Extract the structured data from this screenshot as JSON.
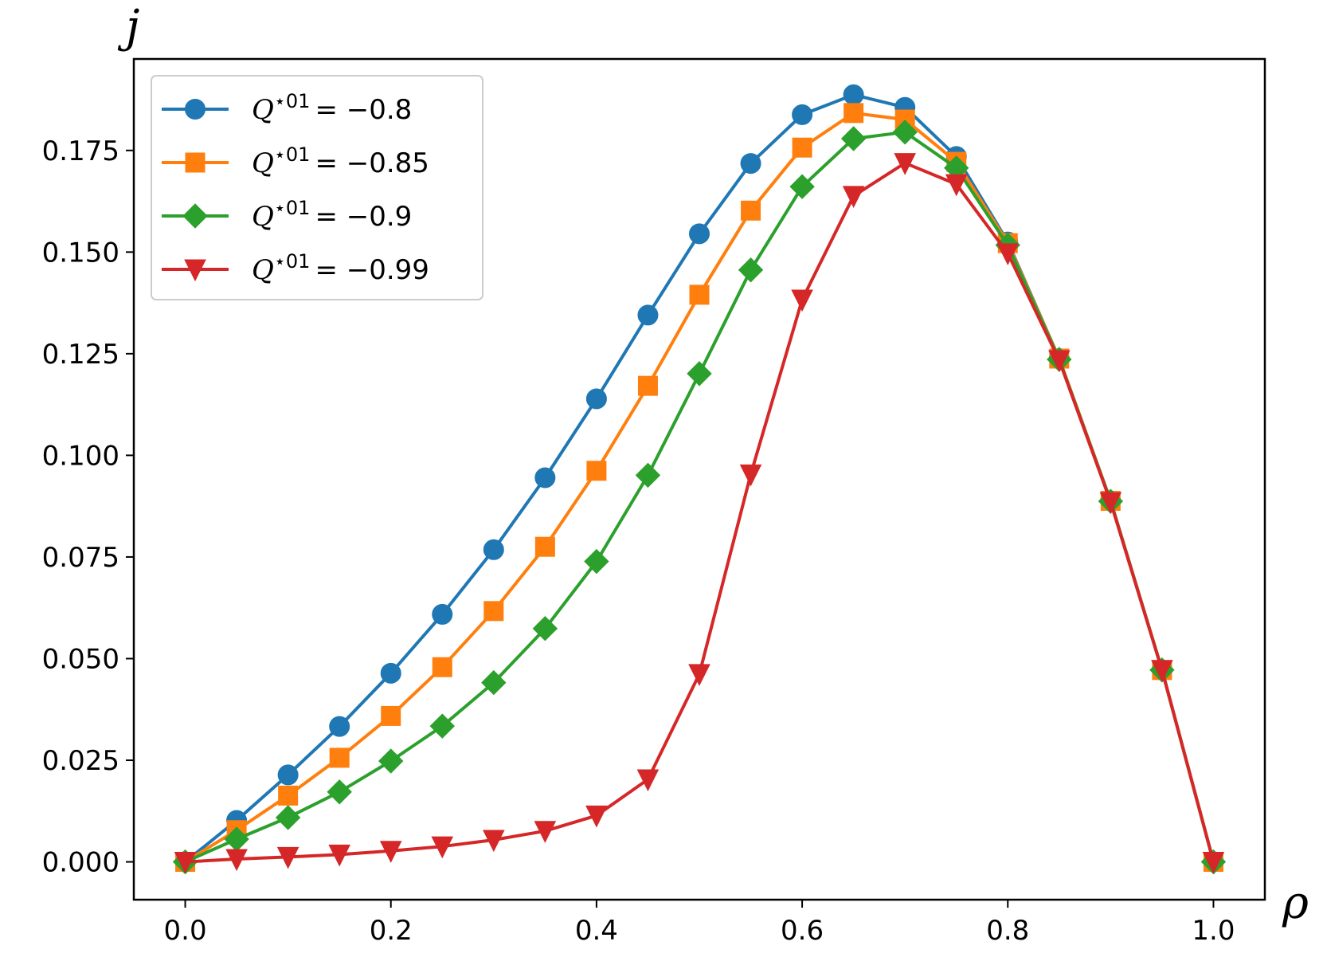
{
  "chart_data": {
    "type": "line",
    "title": "",
    "xlabel": "ρ",
    "ylabel": "j",
    "xlim": [
      -0.05,
      1.05
    ],
    "ylim": [
      -0.0093,
      0.1975
    ],
    "x": [
      0.0,
      0.05,
      0.1,
      0.15,
      0.2,
      0.25,
      0.3,
      0.35,
      0.4,
      0.45,
      0.5,
      0.55,
      0.6,
      0.65,
      0.7,
      0.75,
      0.8,
      0.85,
      0.9,
      0.95,
      1.0
    ],
    "xticks": [
      "0.0",
      "0.2",
      "0.4",
      "0.6",
      "0.8",
      "1.0"
    ],
    "yticks": [
      "0.000",
      "0.025",
      "0.050",
      "0.075",
      "0.100",
      "0.125",
      "0.150",
      "0.175"
    ],
    "grid": false,
    "legend_position": "top-left",
    "series": [
      {
        "name": "Q*01 = -0.8",
        "legend_sup": "⋆01",
        "legend_value": "= −0.8",
        "color": "#1f77b4",
        "marker": "circle",
        "values": [
          0.0,
          0.0102,
          0.0214,
          0.0333,
          0.0464,
          0.0609,
          0.0768,
          0.0945,
          0.1139,
          0.1345,
          0.1545,
          0.1718,
          0.1838,
          0.1887,
          0.1856,
          0.1735,
          0.1525,
          0.1238,
          0.0888,
          0.0472,
          0.0
        ]
      },
      {
        "name": "Q*01 = -0.85",
        "legend_sup": "⋆01",
        "legend_value": "= −0.85",
        "color": "#ff7f0e",
        "marker": "square",
        "values": [
          0.0,
          0.0078,
          0.0163,
          0.0256,
          0.0359,
          0.0479,
          0.0617,
          0.0775,
          0.0962,
          0.1171,
          0.1395,
          0.1602,
          0.1757,
          0.1842,
          0.1826,
          0.1722,
          0.1522,
          0.1238,
          0.0888,
          0.0472,
          0.0
        ]
      },
      {
        "name": "Q*01 = -0.9",
        "legend_sup": "⋆01",
        "legend_value": "= −0.9",
        "color": "#2ca02c",
        "marker": "diamond",
        "values": [
          0.0,
          0.0056,
          0.0109,
          0.0172,
          0.0248,
          0.0334,
          0.0441,
          0.0574,
          0.0739,
          0.0951,
          0.1201,
          0.1456,
          0.1661,
          0.1779,
          0.1795,
          0.1707,
          0.1517,
          0.1236,
          0.0887,
          0.0472,
          0.0
        ]
      },
      {
        "name": "Q*01 = -0.99",
        "legend_sup": "⋆01",
        "legend_value": "= −0.99",
        "color": "#d62728",
        "marker": "triangle-down",
        "values": [
          0.0,
          0.0007,
          0.0012,
          0.0018,
          0.0027,
          0.0038,
          0.0054,
          0.0076,
          0.0114,
          0.0203,
          0.0462,
          0.0953,
          0.1383,
          0.1638,
          0.1719,
          0.1667,
          0.1497,
          0.1234,
          0.0885,
          0.0472,
          0.0
        ]
      }
    ]
  }
}
